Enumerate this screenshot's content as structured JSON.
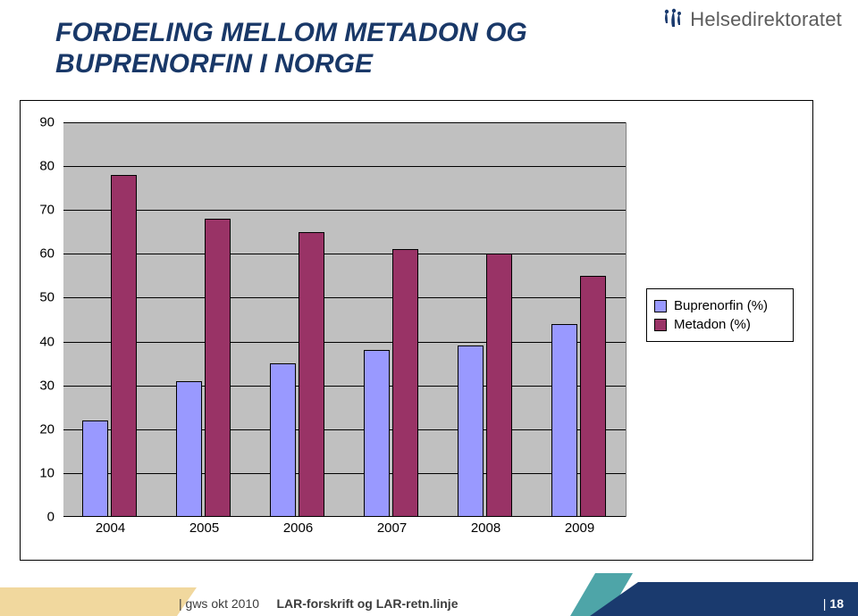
{
  "brand": {
    "name": "Helsedirektoratet"
  },
  "title_line1": "FORDELING MELLOM METADON OG",
  "title_line2": "BUPRENORFIN I NORGE",
  "chart": {
    "type": "bar",
    "categories": [
      "2004",
      "2005",
      "2006",
      "2007",
      "2008",
      "2009"
    ],
    "series": [
      {
        "name": "Buprenorfin (%)",
        "color": "#9999ff",
        "values": [
          22,
          31,
          35,
          38,
          39,
          44
        ]
      },
      {
        "name": "Metadon (%)",
        "color": "#993366",
        "values": [
          78,
          68,
          65,
          61,
          60,
          55
        ]
      }
    ],
    "ylim": [
      0,
      90
    ],
    "ytick_step": 10,
    "yticks": [
      0,
      10,
      20,
      30,
      40,
      50,
      60,
      70,
      80,
      90
    ],
    "background_color": "#ffffff",
    "gridband_color": "#c0c0c0",
    "gridline_color": "#000000",
    "bar_border_color": "#000000",
    "bar_width_ratio": 0.28,
    "bar_gap_ratio": 0.02,
    "group_padding_ratio": 0.2,
    "tick_fontsize": 15,
    "legend_fontsize": 15
  },
  "footer": {
    "left": "gws okt 2010",
    "right": "LAR-forskrift og LAR-retn.linje",
    "page_prefix": "|",
    "page_number": "18",
    "footer_prefix": "| "
  },
  "colors": {
    "title": "#193868",
    "navy": "#1a3a6e",
    "gold": "#e6b84f",
    "teal": "#3b9b9e"
  }
}
